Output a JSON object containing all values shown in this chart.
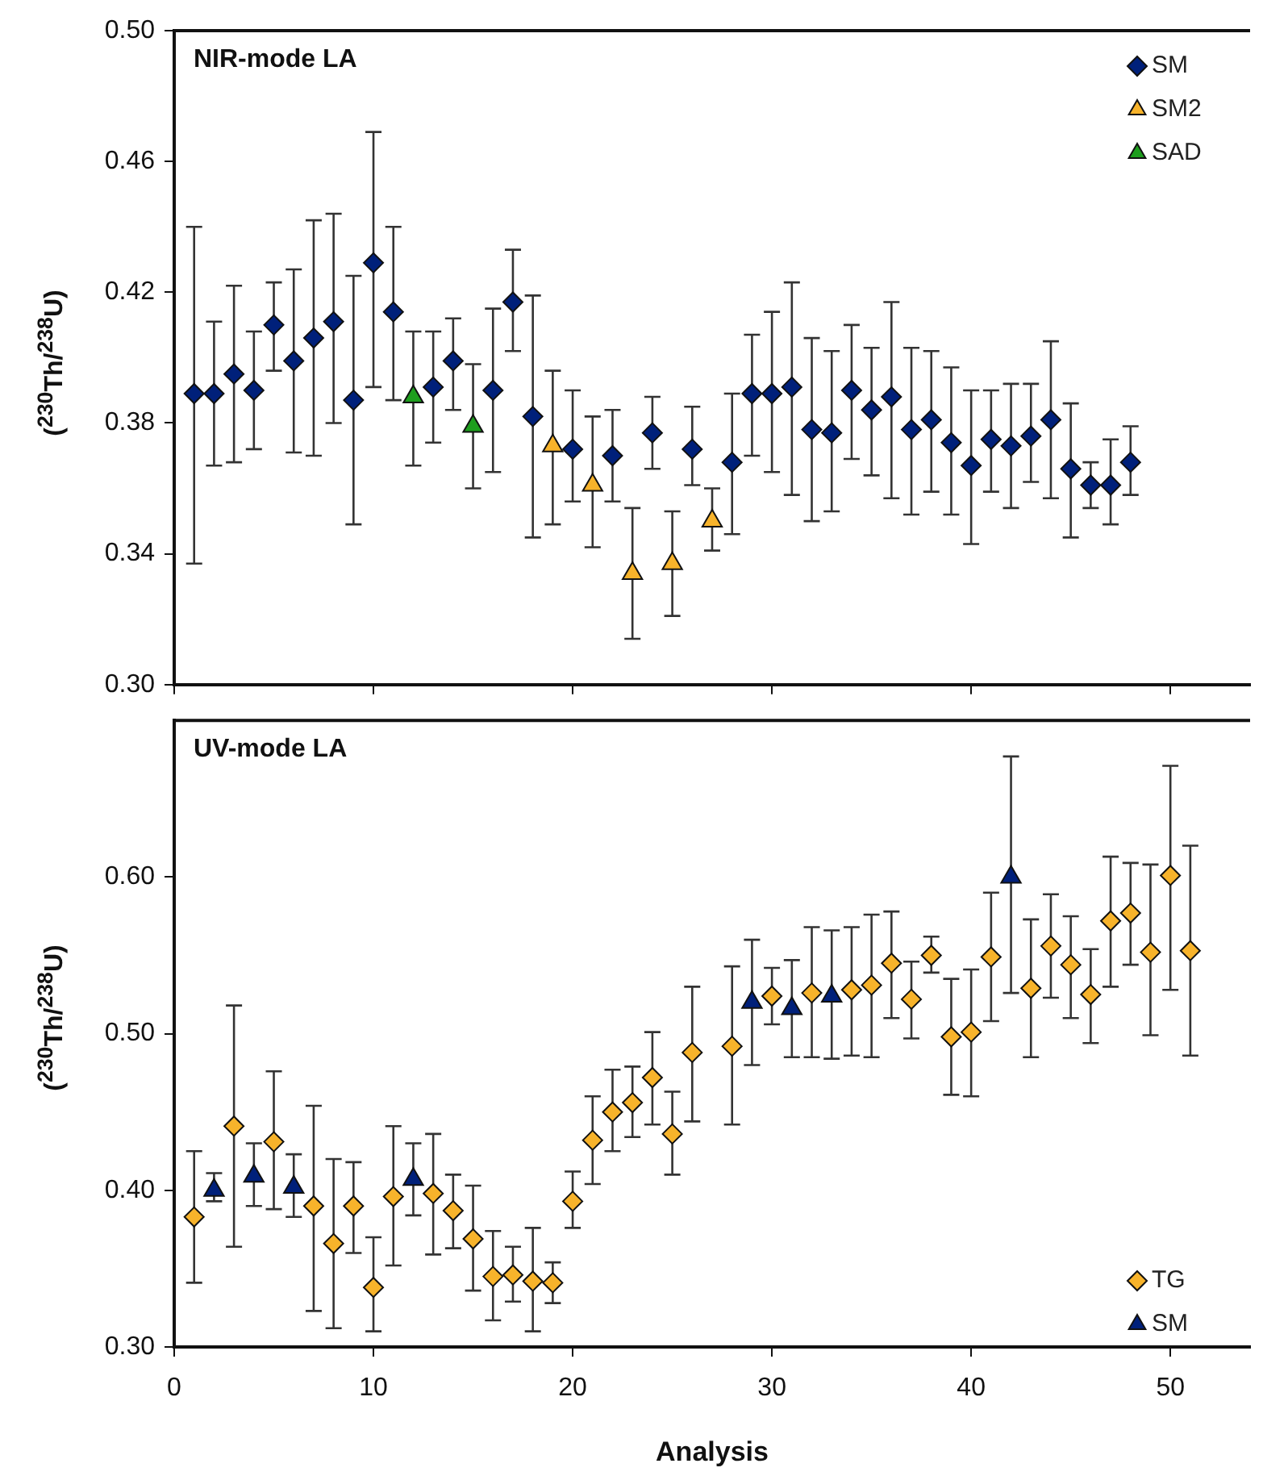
{
  "chart_data": [
    {
      "type": "scatter",
      "title": "NIR-mode LA",
      "ylabel": "($^{230}$Th/$^{238}$U)",
      "xlim": [
        0,
        54
      ],
      "xticks": [
        0,
        10,
        20,
        30,
        40,
        50
      ],
      "ylim": [
        0.3,
        0.5
      ],
      "yticks": [
        {
          "value": 0.3,
          "label": "0.30"
        },
        {
          "value": 0.34,
          "label": "0.34"
        },
        {
          "value": 0.38,
          "label": "0.38"
        },
        {
          "value": 0.42,
          "label": "0.42"
        },
        {
          "value": 0.46,
          "label": "0.46"
        },
        {
          "value": 0.5,
          "label": "0.50"
        }
      ],
      "tick_labels": "y",
      "legend": "top right",
      "series": [
        {
          "name": "SM",
          "color": "#00207a",
          "marker": "diamond",
          "x": [
            1,
            2,
            3,
            4,
            5,
            6,
            7,
            8,
            9,
            10,
            11,
            13,
            14,
            16,
            17,
            18,
            20,
            22,
            24,
            26,
            28,
            29,
            30,
            31,
            32,
            33,
            34,
            35,
            36,
            37,
            38,
            39,
            40,
            41,
            42,
            43,
            44,
            45,
            46,
            47,
            48
          ],
          "values": [
            0.389,
            0.389,
            0.395,
            0.39,
            0.41,
            0.399,
            0.406,
            0.411,
            0.387,
            0.429,
            0.414,
            0.391,
            0.399,
            0.39,
            0.417,
            0.382,
            0.372,
            0.37,
            0.377,
            0.372,
            0.368,
            0.389,
            0.389,
            0.391,
            0.378,
            0.377,
            0.39,
            0.384,
            0.388,
            0.378,
            0.381,
            0.374,
            0.367,
            0.375,
            0.373,
            0.376,
            0.381,
            0.366,
            0.361,
            0.361,
            0.368
          ],
          "errors": [
            [
              0.337,
              0.44
            ],
            [
              0.367,
              0.411
            ],
            [
              0.368,
              0.422
            ],
            [
              0.372,
              0.408
            ],
            [
              0.396,
              0.423
            ],
            [
              0.371,
              0.427
            ],
            [
              0.37,
              0.442
            ],
            [
              0.38,
              0.444
            ],
            [
              0.349,
              0.425
            ],
            [
              0.391,
              0.469
            ],
            [
              0.387,
              0.44
            ],
            [
              0.374,
              0.408
            ],
            [
              0.384,
              0.412
            ],
            [
              0.365,
              0.415
            ],
            [
              0.402,
              0.433
            ],
            [
              0.345,
              0.419
            ],
            [
              0.356,
              0.39
            ],
            [
              0.356,
              0.384
            ],
            [
              0.366,
              0.388
            ],
            [
              0.361,
              0.385
            ],
            [
              0.346,
              0.389
            ],
            [
              0.37,
              0.407
            ],
            [
              0.365,
              0.414
            ],
            [
              0.358,
              0.423
            ],
            [
              0.35,
              0.406
            ],
            [
              0.353,
              0.402
            ],
            [
              0.369,
              0.41
            ],
            [
              0.364,
              0.403
            ],
            [
              0.357,
              0.417
            ],
            [
              0.352,
              0.403
            ],
            [
              0.359,
              0.402
            ],
            [
              0.352,
              0.397
            ],
            [
              0.343,
              0.39
            ],
            [
              0.359,
              0.39
            ],
            [
              0.354,
              0.392
            ],
            [
              0.362,
              0.392
            ],
            [
              0.357,
              0.405
            ],
            [
              0.345,
              0.386
            ],
            [
              0.354,
              0.368
            ],
            [
              0.349,
              0.375
            ],
            [
              0.358,
              0.379
            ]
          ]
        },
        {
          "name": "SM2",
          "color": "#f7b32b",
          "marker": "triangle",
          "x": [
            19,
            21,
            23,
            25,
            27
          ],
          "values": [
            0.373,
            0.361,
            0.334,
            0.337,
            0.35
          ],
          "errors": [
            [
              0.349,
              0.396
            ],
            [
              0.342,
              0.382
            ],
            [
              0.314,
              0.354
            ],
            [
              0.321,
              0.353
            ],
            [
              0.341,
              0.36
            ]
          ]
        },
        {
          "name": "SAD",
          "color": "#1e9e1e",
          "marker": "triangle",
          "x": [
            12,
            15
          ],
          "values": [
            0.388,
            0.379
          ],
          "errors": [
            [
              0.367,
              0.408
            ],
            [
              0.36,
              0.398
            ]
          ]
        }
      ]
    },
    {
      "type": "scatter",
      "title": "UV-mode LA",
      "xlabel": "Analysis",
      "ylabel": "($^{230}$Th/$^{238}$U)",
      "xlim": [
        0,
        54
      ],
      "xticks": [
        0,
        10,
        20,
        30,
        40,
        50
      ],
      "ylim": [
        0.3,
        0.7
      ],
      "yticks": [
        {
          "value": 0.3,
          "label": "0.30"
        },
        {
          "value": 0.4,
          "label": "0.40"
        },
        {
          "value": 0.5,
          "label": "0.50"
        },
        {
          "value": 0.6,
          "label": "0.60"
        }
      ],
      "legend": "bottom right",
      "series": [
        {
          "name": "TG",
          "color": "#f7b32b",
          "marker": "diamond",
          "x": [
            1,
            3,
            5,
            7,
            8,
            9,
            10,
            11,
            13,
            14,
            15,
            16,
            17,
            18,
            19,
            20,
            21,
            22,
            23,
            24,
            25,
            26,
            28,
            30,
            32,
            34,
            35,
            36,
            37,
            38,
            39,
            40,
            41,
            43,
            44,
            45,
            46,
            47,
            48,
            49,
            50,
            51
          ],
          "values": [
            0.383,
            0.441,
            0.431,
            0.39,
            0.366,
            0.39,
            0.338,
            0.396,
            0.398,
            0.387,
            0.369,
            0.345,
            0.346,
            0.342,
            0.341,
            0.393,
            0.432,
            0.45,
            0.456,
            0.472,
            0.436,
            0.488,
            0.492,
            0.524,
            0.526,
            0.528,
            0.531,
            0.545,
            0.522,
            0.55,
            0.498,
            0.501,
            0.549,
            0.529,
            0.556,
            0.544,
            0.525,
            0.572,
            0.577,
            0.552,
            0.601,
            0.553
          ],
          "errors": [
            [
              0.341,
              0.425
            ],
            [
              0.364,
              0.518
            ],
            [
              0.388,
              0.476
            ],
            [
              0.323,
              0.454
            ],
            [
              0.312,
              0.42
            ],
            [
              0.36,
              0.418
            ],
            [
              0.31,
              0.37
            ],
            [
              0.352,
              0.441
            ],
            [
              0.359,
              0.436
            ],
            [
              0.363,
              0.41
            ],
            [
              0.336,
              0.403
            ],
            [
              0.317,
              0.374
            ],
            [
              0.329,
              0.364
            ],
            [
              0.31,
              0.376
            ],
            [
              0.328,
              0.354
            ],
            [
              0.376,
              0.412
            ],
            [
              0.404,
              0.46
            ],
            [
              0.425,
              0.477
            ],
            [
              0.434,
              0.479
            ],
            [
              0.442,
              0.501
            ],
            [
              0.41,
              0.463
            ],
            [
              0.444,
              0.53
            ],
            [
              0.442,
              0.543
            ],
            [
              0.506,
              0.542
            ],
            [
              0.485,
              0.568
            ],
            [
              0.486,
              0.568
            ],
            [
              0.485,
              0.576
            ],
            [
              0.51,
              0.578
            ],
            [
              0.497,
              0.546
            ],
            [
              0.539,
              0.562
            ],
            [
              0.461,
              0.535
            ],
            [
              0.46,
              0.541
            ],
            [
              0.508,
              0.59
            ],
            [
              0.485,
              0.573
            ],
            [
              0.523,
              0.589
            ],
            [
              0.51,
              0.575
            ],
            [
              0.494,
              0.554
            ],
            [
              0.53,
              0.613
            ],
            [
              0.544,
              0.609
            ],
            [
              0.499,
              0.608
            ],
            [
              0.528,
              0.671
            ],
            [
              0.486,
              0.62
            ]
          ]
        },
        {
          "name": "SM",
          "color": "#00207a",
          "marker": "triangle",
          "x": [
            2,
            4,
            6,
            12,
            29,
            31,
            33,
            42
          ],
          "values": [
            0.4,
            0.409,
            0.402,
            0.407,
            0.52,
            0.516,
            0.524,
            0.6
          ],
          "errors": [
            [
              0.393,
              0.411
            ],
            [
              0.39,
              0.43
            ],
            [
              0.383,
              0.423
            ],
            [
              0.384,
              0.43
            ],
            [
              0.48,
              0.56
            ],
            [
              0.485,
              0.547
            ],
            [
              0.484,
              0.566
            ],
            [
              0.526,
              0.677
            ]
          ]
        }
      ]
    }
  ]
}
